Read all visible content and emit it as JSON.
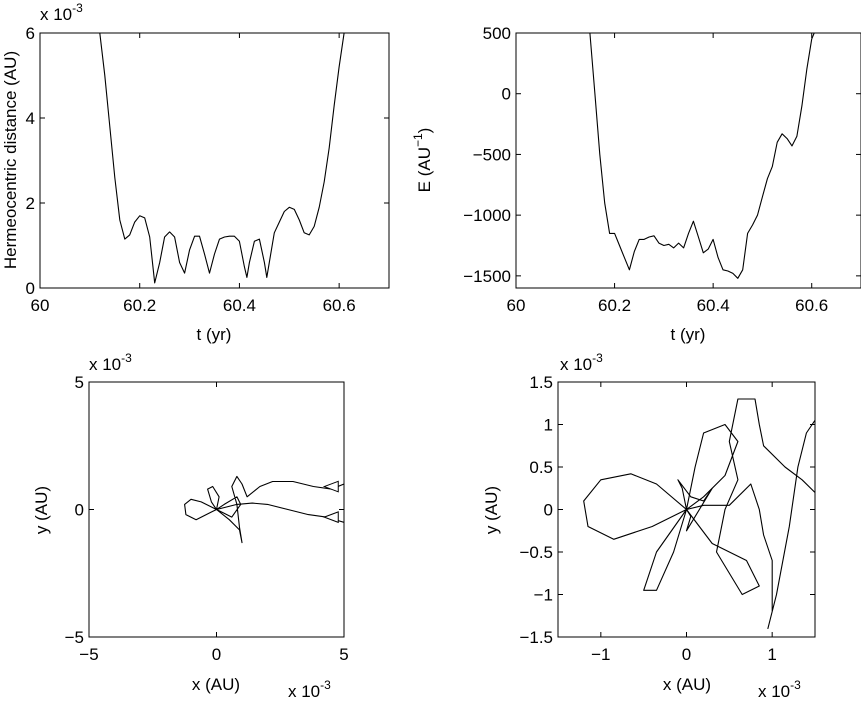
{
  "chart_data": [
    {
      "type": "line",
      "xlabel": "t (yr)",
      "ylabel": "Hermeocentric distance (AU)",
      "xlim": [
        60,
        60.7
      ],
      "ylim": [
        0,
        6
      ],
      "xticks": [
        "60",
        "60.2",
        "60.4",
        "60.6"
      ],
      "yticks": [
        "0",
        "2",
        "4",
        "6"
      ],
      "y_exponent_label": "x 10",
      "y_exponent": "-3",
      "series": [
        {
          "values": [
            [
              60.12,
              6.0
            ],
            [
              60.13,
              5.0
            ],
            [
              60.14,
              3.8
            ],
            [
              60.15,
              2.6
            ],
            [
              60.16,
              1.6
            ],
            [
              60.17,
              1.15
            ],
            [
              60.18,
              1.25
            ],
            [
              60.19,
              1.55
            ],
            [
              60.2,
              1.7
            ],
            [
              60.21,
              1.65
            ],
            [
              60.22,
              1.2
            ],
            [
              60.23,
              0.12
            ],
            [
              60.24,
              0.6
            ],
            [
              60.25,
              1.2
            ],
            [
              60.26,
              1.32
            ],
            [
              60.27,
              1.2
            ],
            [
              60.28,
              0.6
            ],
            [
              60.29,
              0.35
            ],
            [
              60.3,
              0.9
            ],
            [
              60.31,
              1.22
            ],
            [
              60.32,
              1.22
            ],
            [
              60.33,
              0.8
            ],
            [
              60.34,
              0.35
            ],
            [
              60.35,
              0.8
            ],
            [
              60.36,
              1.15
            ],
            [
              60.37,
              1.2
            ],
            [
              60.38,
              1.22
            ],
            [
              60.39,
              1.22
            ],
            [
              60.4,
              1.1
            ],
            [
              60.41,
              0.5
            ],
            [
              60.415,
              0.25
            ],
            [
              60.42,
              0.6
            ],
            [
              60.43,
              1.1
            ],
            [
              60.44,
              1.15
            ],
            [
              60.45,
              0.6
            ],
            [
              60.455,
              0.25
            ],
            [
              60.46,
              0.6
            ],
            [
              60.47,
              1.3
            ],
            [
              60.48,
              1.55
            ],
            [
              60.49,
              1.8
            ],
            [
              60.5,
              1.9
            ],
            [
              60.51,
              1.85
            ],
            [
              60.52,
              1.6
            ],
            [
              60.53,
              1.3
            ],
            [
              60.54,
              1.25
            ],
            [
              60.55,
              1.45
            ],
            [
              60.56,
              1.9
            ],
            [
              60.57,
              2.5
            ],
            [
              60.58,
              3.3
            ],
            [
              60.59,
              4.3
            ],
            [
              60.6,
              5.2
            ],
            [
              60.61,
              6.0
            ]
          ]
        }
      ]
    },
    {
      "type": "line",
      "xlabel": "t (yr)",
      "ylabel": "E (AU",
      "ylabel_sup": "−1",
      "ylabel_close": ")",
      "xlim": [
        60,
        60.7
      ],
      "ylim": [
        -1600,
        500
      ],
      "xticks": [
        "60",
        "60.2",
        "60.4",
        "60.6"
      ],
      "yticks": [
        "−1500",
        "−1000",
        "−500",
        "0",
        "500"
      ],
      "series": [
        {
          "values": [
            [
              60.15,
              500
            ],
            [
              60.16,
              0
            ],
            [
              60.17,
              -500
            ],
            [
              60.18,
              -900
            ],
            [
              60.19,
              -1150
            ],
            [
              60.2,
              -1150
            ],
            [
              60.21,
              -1250
            ],
            [
              60.22,
              -1350
            ],
            [
              60.23,
              -1450
            ],
            [
              60.24,
              -1300
            ],
            [
              60.25,
              -1200
            ],
            [
              60.26,
              -1200
            ],
            [
              60.27,
              -1180
            ],
            [
              60.28,
              -1170
            ],
            [
              60.29,
              -1230
            ],
            [
              60.3,
              -1250
            ],
            [
              60.31,
              -1240
            ],
            [
              60.32,
              -1270
            ],
            [
              60.33,
              -1230
            ],
            [
              60.34,
              -1270
            ],
            [
              60.35,
              -1150
            ],
            [
              60.36,
              -1050
            ],
            [
              60.37,
              -1180
            ],
            [
              60.38,
              -1310
            ],
            [
              60.39,
              -1280
            ],
            [
              60.4,
              -1200
            ],
            [
              60.41,
              -1350
            ],
            [
              60.42,
              -1450
            ],
            [
              60.43,
              -1460
            ],
            [
              60.44,
              -1480
            ],
            [
              60.45,
              -1520
            ],
            [
              60.46,
              -1450
            ],
            [
              60.47,
              -1150
            ],
            [
              60.48,
              -1080
            ],
            [
              60.49,
              -1000
            ],
            [
              60.5,
              -850
            ],
            [
              60.51,
              -700
            ],
            [
              60.52,
              -600
            ],
            [
              60.53,
              -400
            ],
            [
              60.54,
              -330
            ],
            [
              60.55,
              -370
            ],
            [
              60.56,
              -430
            ],
            [
              60.57,
              -350
            ],
            [
              60.58,
              -100
            ],
            [
              60.59,
              200
            ],
            [
              60.6,
              450
            ],
            [
              60.605,
              500
            ]
          ]
        }
      ]
    },
    {
      "type": "line",
      "xlabel": "x (AU)",
      "ylabel": "y (AU)",
      "xlim": [
        -5,
        5
      ],
      "ylim": [
        -5,
        5
      ],
      "xticks": [
        "−5",
        "0",
        "5"
      ],
      "yticks": [
        "−5",
        "0",
        "5"
      ],
      "x_exponent_label": "x 10",
      "x_exponent": "-3",
      "y_exponent_label": "x 10",
      "y_exponent": "-3",
      "series": [
        {
          "values": [
            [
              0,
              0
            ],
            [
              -0.6,
              0.3
            ],
            [
              -1.0,
              0.4
            ],
            [
              -1.25,
              0.2
            ],
            [
              -1.2,
              -0.2
            ],
            [
              -0.8,
              -0.4
            ],
            [
              -0.2,
              -0.1
            ],
            [
              0,
              0
            ],
            [
              -0.2,
              0.3
            ],
            [
              -0.35,
              0.8
            ],
            [
              -0.15,
              0.9
            ],
            [
              0.1,
              0.5
            ],
            [
              0,
              0
            ],
            [
              0.3,
              0.2
            ],
            [
              0.8,
              0.5
            ],
            [
              0.95,
              0.2
            ],
            [
              0.6,
              -0.3
            ],
            [
              0.2,
              -0.1
            ],
            [
              0,
              0
            ],
            [
              0.5,
              -0.4
            ],
            [
              0.9,
              -0.8
            ],
            [
              1.0,
              -1.3
            ],
            [
              0.9,
              -0.7
            ],
            [
              0.8,
              0.2
            ],
            [
              0.6,
              0.9
            ],
            [
              0.8,
              1.3
            ],
            [
              1.0,
              1.0
            ],
            [
              1.2,
              0.5
            ],
            [
              1.7,
              0.9
            ],
            [
              2.2,
              1.1
            ],
            [
              3.0,
              1.1
            ],
            [
              3.8,
              0.9
            ],
            [
              4.5,
              0.8
            ],
            [
              5.0,
              1.0
            ]
          ]
        },
        {
          "values": [
            [
              0,
              0
            ],
            [
              0.8,
              0.2
            ],
            [
              1.4,
              0.25
            ],
            [
              2.0,
              0.2
            ],
            [
              2.8,
              0.0
            ],
            [
              3.6,
              -0.2
            ],
            [
              4.3,
              -0.3
            ],
            [
              5.0,
              -0.5
            ]
          ]
        }
      ],
      "markers": [
        {
          "shape": "triangle-left",
          "x": 4.5,
          "y": 0.9
        },
        {
          "shape": "triangle-left",
          "x": 4.5,
          "y": -0.3
        }
      ]
    },
    {
      "type": "line",
      "xlabel": "x (AU)",
      "ylabel": "y (AU)",
      "xlim": [
        -1.5,
        1.5
      ],
      "ylim": [
        -1.5,
        1.5
      ],
      "xticks": [
        "−1",
        "0",
        "1"
      ],
      "yticks": [
        "−1.5",
        "−1",
        "−0.5",
        "0",
        "0.5",
        "1",
        "1.5"
      ],
      "x_exponent_label": "x 10",
      "x_exponent": "-3",
      "y_exponent_label": "x 10",
      "y_exponent": "-3",
      "series": [
        {
          "values": [
            [
              0,
              0
            ],
            [
              -0.35,
              0.3
            ],
            [
              -0.65,
              0.42
            ],
            [
              -1.0,
              0.35
            ],
            [
              -1.2,
              0.1
            ],
            [
              -1.15,
              -0.2
            ],
            [
              -0.85,
              -0.35
            ],
            [
              -0.4,
              -0.2
            ],
            [
              0,
              0
            ],
            [
              -0.35,
              -0.5
            ],
            [
              -0.5,
              -0.95
            ],
            [
              -0.35,
              -0.95
            ],
            [
              -0.15,
              -0.5
            ],
            [
              0,
              0
            ],
            [
              0.1,
              0.5
            ],
            [
              0.2,
              0.9
            ],
            [
              0.45,
              1.0
            ],
            [
              0.6,
              0.8
            ],
            [
              0.45,
              0.4
            ],
            [
              0.2,
              0.15
            ],
            [
              0,
              0
            ],
            [
              0.3,
              -0.4
            ],
            [
              0.7,
              -0.6
            ],
            [
              0.85,
              -0.9
            ],
            [
              0.65,
              -1.0
            ],
            [
              0.35,
              -0.5
            ],
            [
              0.45,
              0.0
            ],
            [
              0.6,
              0.35
            ],
            [
              0.5,
              0.8
            ],
            [
              0.6,
              1.3
            ],
            [
              0.8,
              1.3
            ],
            [
              0.85,
              1.0
            ],
            [
              0.9,
              0.75
            ],
            [
              1.15,
              0.5
            ],
            [
              1.35,
              0.35
            ],
            [
              1.5,
              0.2
            ]
          ]
        },
        {
          "values": [
            [
              0,
              0
            ],
            [
              0.2,
              0.05
            ],
            [
              0.5,
              0.05
            ],
            [
              0.75,
              0.3
            ],
            [
              0.85,
              0.0
            ],
            [
              0.9,
              -0.3
            ],
            [
              1.0,
              -0.6
            ],
            [
              1.0,
              -1.2
            ],
            [
              0.95,
              -1.4
            ],
            [
              1.05,
              -1.0
            ],
            [
              1.2,
              -0.2
            ],
            [
              1.3,
              0.5
            ],
            [
              1.4,
              0.9
            ],
            [
              1.5,
              1.05
            ]
          ]
        },
        {
          "values": [
            [
              0,
              0
            ],
            [
              -0.05,
              0.25
            ],
            [
              -0.1,
              0.35
            ],
            [
              0.05,
              0.15
            ],
            [
              0.2,
              0.1
            ],
            [
              0.3,
              0.25
            ],
            [
              0.0,
              -0.25
            ],
            [
              0.05,
              -0.08
            ],
            [
              0,
              0
            ]
          ]
        }
      ]
    }
  ]
}
